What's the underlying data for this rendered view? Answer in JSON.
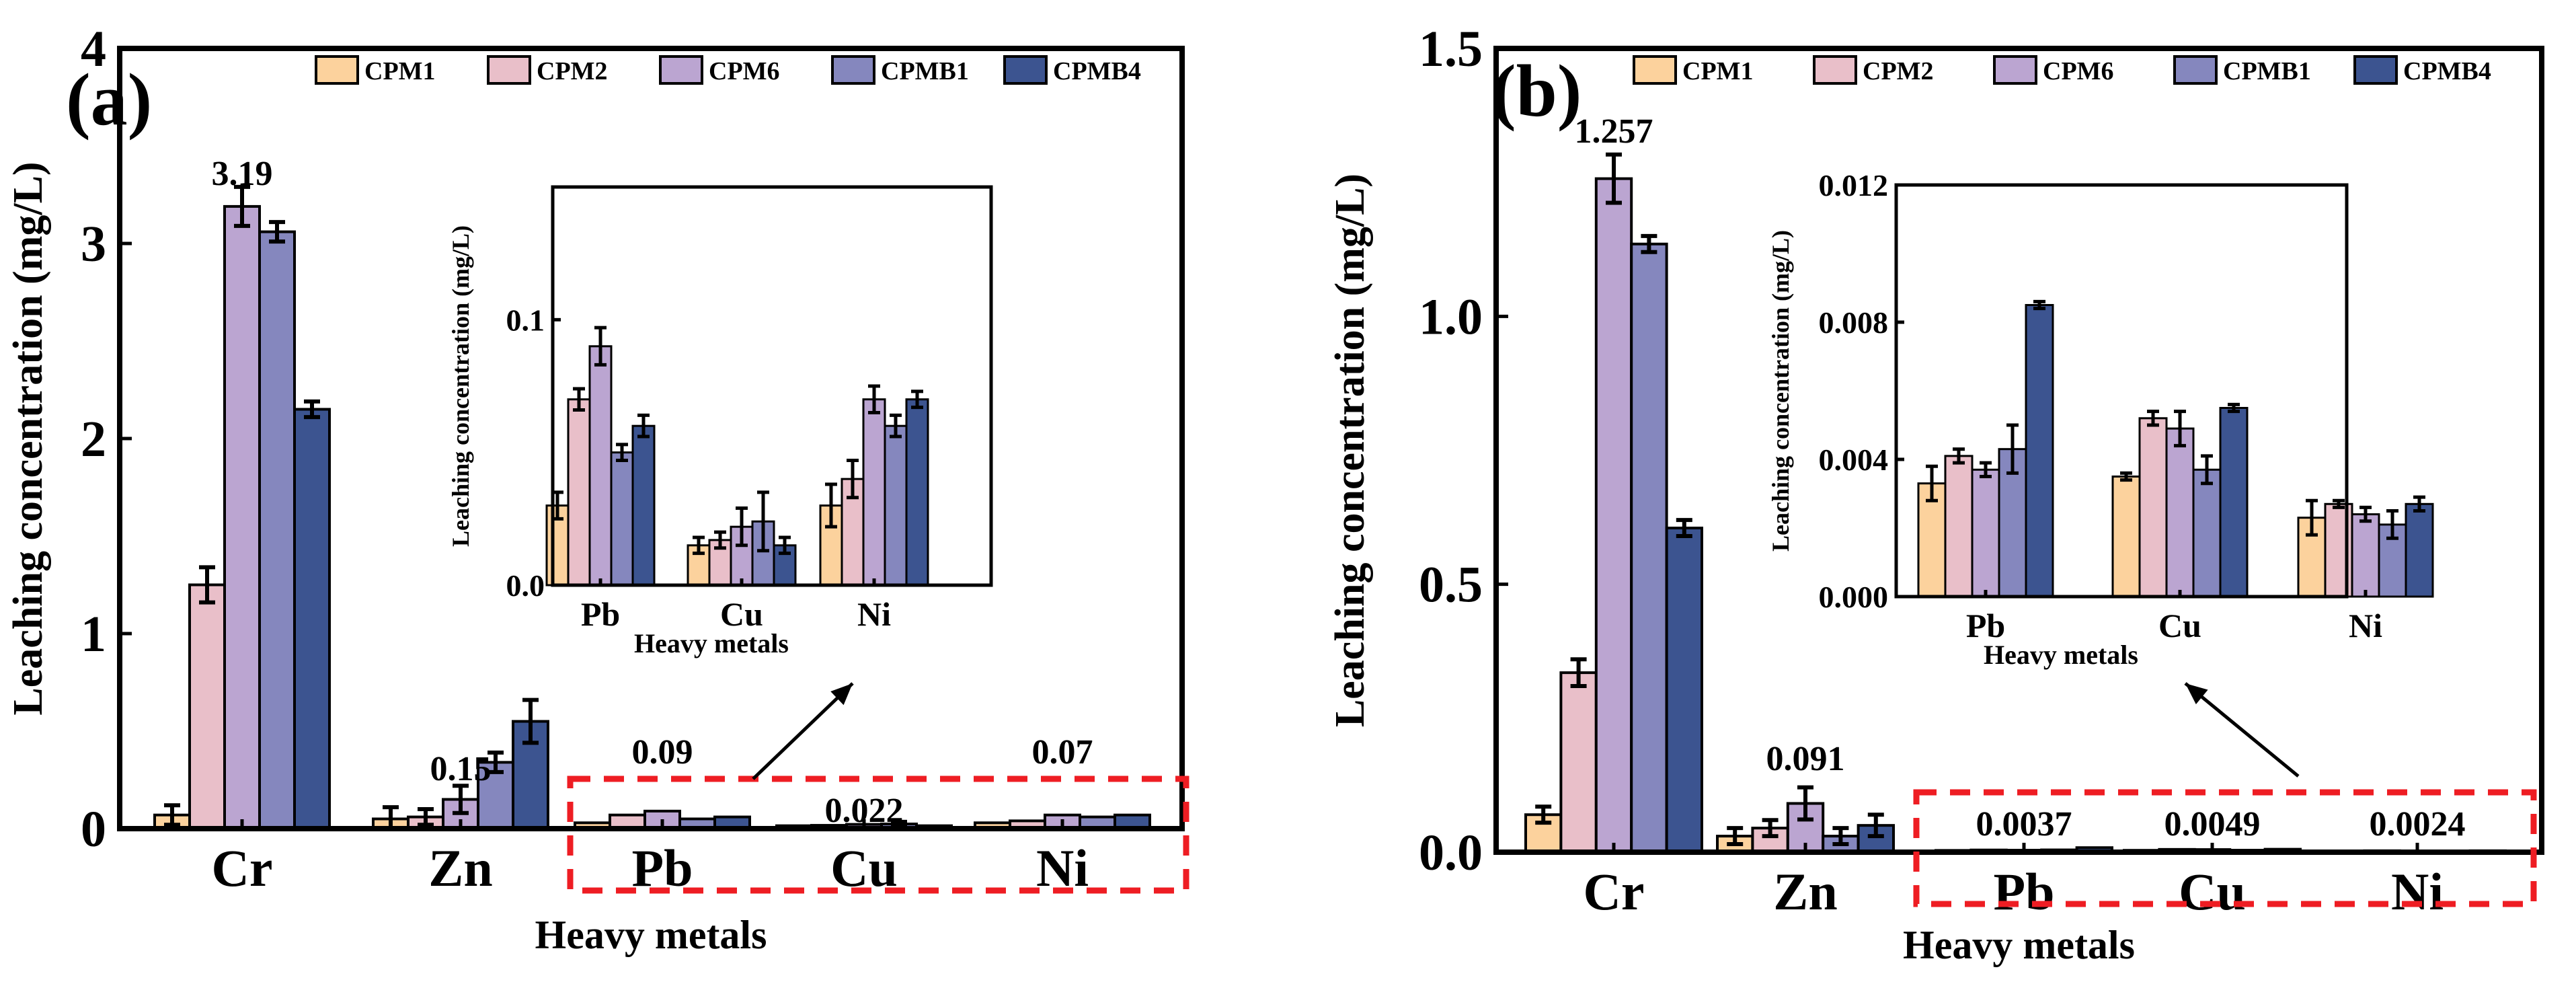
{
  "chart_data": [
    {
      "type": "bar",
      "panel_label": "(a)",
      "xlabel": "Heavy metals",
      "ylabel": "Leaching concentration (mg/L)",
      "ylim": [
        0,
        4
      ],
      "yticks": [
        "0",
        "1",
        "2",
        "3",
        "4"
      ],
      "categories": [
        "Cr",
        "Zn",
        "Pb",
        "Cu",
        "Ni"
      ],
      "series": [
        {
          "name": "CPM1",
          "color": "#fcd29d",
          "values": [
            0.07,
            0.05,
            0.03,
            0.015,
            0.03
          ],
          "errors": [
            0.05,
            0.06,
            0.005,
            0.003,
            0.008
          ]
        },
        {
          "name": "CPM2",
          "color": "#e9bfc9",
          "values": [
            1.25,
            0.06,
            0.07,
            0.017,
            0.04
          ],
          "errors": [
            0.09,
            0.04,
            0.004,
            0.003,
            0.007
          ]
        },
        {
          "name": "CPM6",
          "color": "#bba5d1",
          "values": [
            3.19,
            0.15,
            0.09,
            0.022,
            0.07
          ],
          "errors": [
            0.1,
            0.07,
            0.007,
            0.007,
            0.005
          ]
        },
        {
          "name": "CPMB1",
          "color": "#8587be",
          "values": [
            3.06,
            0.34,
            0.05,
            0.024,
            0.06
          ],
          "errors": [
            0.05,
            0.05,
            0.003,
            0.011,
            0.004
          ]
        },
        {
          "name": "CPMB4",
          "color": "#3c5490",
          "values": [
            2.15,
            0.55,
            0.06,
            0.015,
            0.07
          ],
          "errors": [
            0.04,
            0.11,
            0.004,
            0.003,
            0.003
          ]
        }
      ],
      "annotations": [
        {
          "text": "3.19",
          "category": "Cr",
          "value": 3.19
        },
        {
          "text": "0.15",
          "category": "Zn",
          "value": 0.15
        },
        {
          "text": "0.09",
          "category": "Pb",
          "value": 0.09
        },
        {
          "text": "0.022",
          "category": "Cu",
          "value": 0.022
        },
        {
          "text": "0.07",
          "category": "Ni",
          "value": 0.07
        }
      ],
      "inset": {
        "xlabel": "Heavy metals",
        "ylabel": "Leaching concentration (mg/L)",
        "categories": [
          "Pb",
          "Cu",
          "Ni"
        ],
        "ylim": [
          0,
          0.15
        ],
        "yticks": [
          "0.0",
          "0.1"
        ],
        "ytick_values": [
          0,
          0.1
        ]
      }
    },
    {
      "type": "bar",
      "panel_label": "(b)",
      "xlabel": "Heavy metals",
      "ylabel": "Leaching concentration (mg/L)",
      "ylim": [
        0,
        1.5
      ],
      "yticks": [
        "0.0",
        "0.5",
        "1.0",
        "1.5"
      ],
      "categories": [
        "Cr",
        "Zn",
        "Pb",
        "Cu",
        "Ni"
      ],
      "series": [
        {
          "name": "CPM1",
          "color": "#fcd29d",
          "values": [
            0.07,
            0.03,
            0.0033,
            0.0035,
            0.0023
          ],
          "errors": [
            0.015,
            0.015,
            0.0005,
            0.0001,
            0.0005
          ]
        },
        {
          "name": "CPM2",
          "color": "#e9bfc9",
          "values": [
            0.335,
            0.045,
            0.0041,
            0.0052,
            0.0027
          ],
          "errors": [
            0.025,
            0.015,
            0.0002,
            0.0002,
            0.0001
          ]
        },
        {
          "name": "CPM6",
          "color": "#bba5d1",
          "values": [
            1.257,
            0.091,
            0.0037,
            0.0049,
            0.0024
          ],
          "errors": [
            0.045,
            0.03,
            0.0002,
            0.0005,
            0.0002
          ]
        },
        {
          "name": "CPMB1",
          "color": "#8587be",
          "values": [
            1.135,
            0.03,
            0.0043,
            0.0037,
            0.0021
          ],
          "errors": [
            0.015,
            0.015,
            0.0007,
            0.0004,
            0.0004
          ]
        },
        {
          "name": "CPMB4",
          "color": "#3c5490",
          "values": [
            0.605,
            0.05,
            0.0085,
            0.0055,
            0.0027
          ],
          "errors": [
            0.015,
            0.02,
            0.0001,
            0.0001,
            0.0002
          ]
        }
      ],
      "annotations": [
        {
          "text": "1.257",
          "category": "Cr",
          "value": 1.257
        },
        {
          "text": "0.091",
          "category": "Zn",
          "value": 0.091
        },
        {
          "text": "0.0037",
          "category": "Pb",
          "value": 0.0037
        },
        {
          "text": "0.0049",
          "category": "Cu",
          "value": 0.0049
        },
        {
          "text": "0.0024",
          "category": "Ni",
          "value": 0.0024
        }
      ],
      "inset": {
        "xlabel": "Heavy metals",
        "ylabel": "Leaching concentration (mg/L)",
        "categories": [
          "Pb",
          "Cu",
          "Ni"
        ],
        "ylim": [
          0,
          0.012
        ],
        "yticks": [
          "0.000",
          "0.004",
          "0.008",
          "0.012"
        ],
        "ytick_values": [
          0,
          0.004,
          0.008,
          0.012
        ]
      }
    }
  ]
}
